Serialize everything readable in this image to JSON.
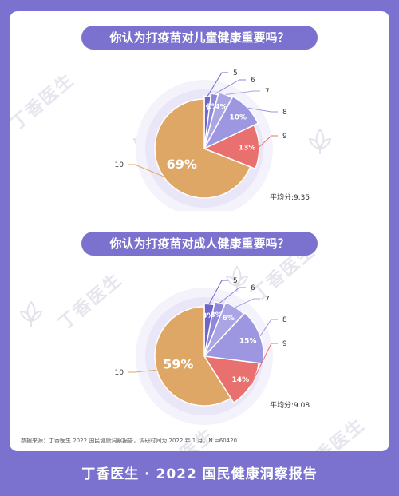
{
  "watermark": "丁香医生",
  "charts": [
    {
      "title": "你认为打疫苗对儿童健康重要吗？",
      "average": "平均分:9.35",
      "chart_data": {
        "type": "pie",
        "categories": [
          "5",
          "6",
          "7",
          "8",
          "9",
          "10"
        ],
        "values": [
          2,
          2,
          4,
          10,
          13,
          69
        ],
        "value_labels": [
          "2%",
          "2%",
          "4%",
          "10%",
          "13%",
          "69%"
        ]
      }
    },
    {
      "title": "你认为打疫苗对成人健康重要吗？",
      "average": "平均分:9.08",
      "chart_data": {
        "type": "pie",
        "categories": [
          "5",
          "6",
          "7",
          "8",
          "9",
          "10"
        ],
        "values": [
          3,
          3,
          6,
          15,
          14,
          59
        ],
        "value_labels": [
          "3%",
          "3%",
          "6%",
          "15%",
          "14%",
          "59%"
        ]
      }
    }
  ],
  "colors": [
    "#6d65c9",
    "#8f88da",
    "#aba5e6",
    "#9d97e2",
    "#e8706e",
    "#dfa766"
  ],
  "source": "数据来源：丁香医生 2022 国民健康洞察报告，调研时间为 2022 年 1 月，N =60420",
  "footer": "丁香医生 · 2022 国民健康洞察报告"
}
